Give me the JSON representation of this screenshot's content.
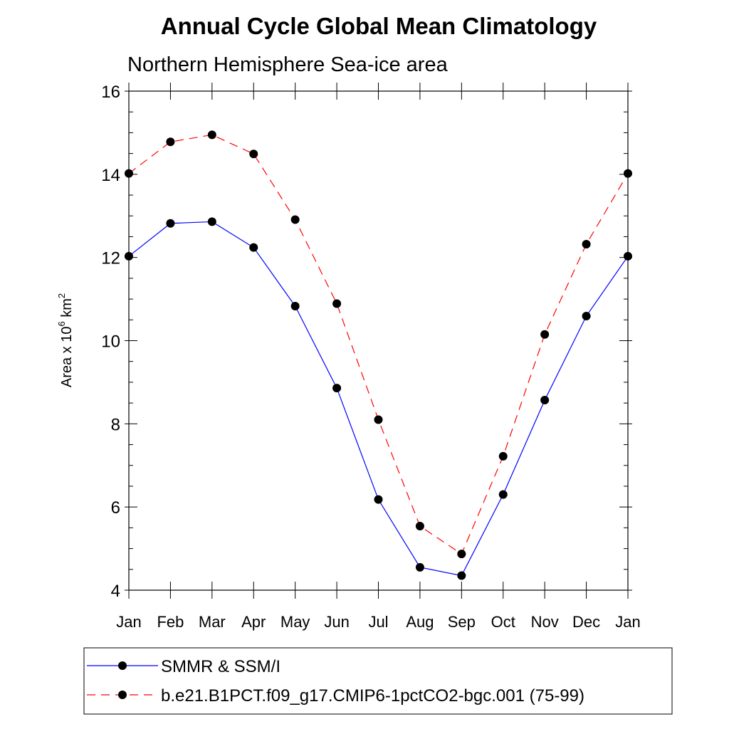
{
  "chart_data": {
    "type": "line",
    "title": "Annual Cycle Global Mean Climatology",
    "subtitle": "Northern Hemisphere Sea-ice area",
    "ylabel": "Area x 10",
    "ylabel_exp": "6",
    "ylabel_unit": " km",
    "ylabel_unit_exp": "2",
    "xlabel": "",
    "ylim": [
      4,
      16
    ],
    "yticks": [
      "4",
      "6",
      "8",
      "10",
      "12",
      "14",
      "16"
    ],
    "categories": [
      "Jan",
      "Feb",
      "Mar",
      "Apr",
      "May",
      "Jun",
      "Jul",
      "Aug",
      "Sep",
      "Oct",
      "Nov",
      "Dec",
      "Jan"
    ],
    "grid": false,
    "legend_position": "bottom",
    "series": [
      {
        "name": "SMMR & SSM/I",
        "color": "#0000ff",
        "dash": "solid",
        "marker": "filled-circle",
        "values": [
          12.03,
          12.82,
          12.86,
          12.24,
          10.83,
          8.86,
          6.18,
          4.55,
          4.35,
          6.3,
          8.57,
          10.59,
          12.03
        ]
      },
      {
        "name": "b.e21.B1PCT.f09_g17.CMIP6-1pctCO2-bgc.001 (75-99)",
        "color": "#ff0000",
        "dash": "dashed",
        "marker": "filled-circle",
        "values": [
          14.02,
          14.78,
          14.95,
          14.49,
          12.91,
          10.89,
          8.1,
          5.54,
          4.87,
          7.22,
          10.15,
          12.32,
          14.02
        ]
      }
    ]
  }
}
